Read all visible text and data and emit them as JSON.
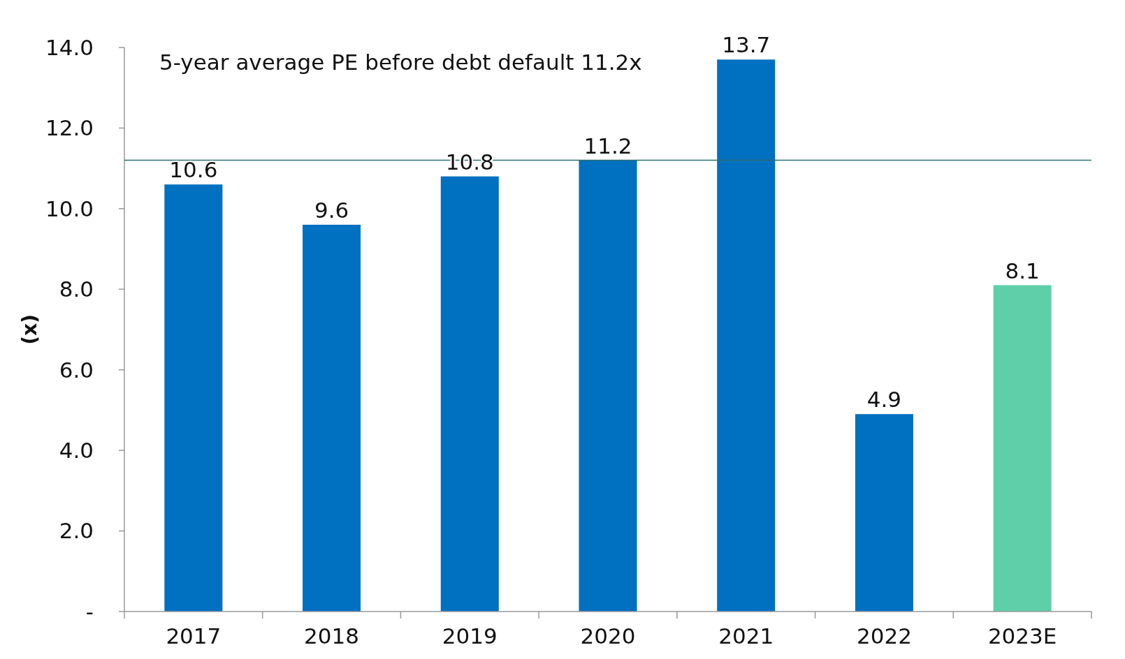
{
  "chart_data": {
    "type": "bar",
    "ylabel": "(x)",
    "categories": [
      "2017",
      "2018",
      "2019",
      "2020",
      "2021",
      "2022",
      "2023E"
    ],
    "values": [
      10.6,
      9.6,
      10.8,
      11.2,
      13.7,
      4.9,
      8.1
    ],
    "colors": [
      "#0070c0",
      "#0070c0",
      "#0070c0",
      "#0070c0",
      "#0070c0",
      "#0070c0",
      "#5ecfa9"
    ],
    "ylim": [
      0,
      14
    ],
    "yticks": [
      {
        "value": 0,
        "label": "-"
      },
      {
        "value": 2,
        "label": "2.0"
      },
      {
        "value": 4,
        "label": "4.0"
      },
      {
        "value": 6,
        "label": "6.0"
      },
      {
        "value": 8,
        "label": "8.0"
      },
      {
        "value": 10,
        "label": "10.0"
      },
      {
        "value": 12,
        "label": "12.0"
      },
      {
        "value": 14,
        "label": "14.0"
      }
    ],
    "ref_lines": [
      {
        "axis": "y",
        "value": 11.2,
        "color": "#2f6f6f"
      }
    ],
    "annotations": [
      "5-year average PE before debt default 11.2x"
    ],
    "data_labels": true,
    "grid": false
  }
}
